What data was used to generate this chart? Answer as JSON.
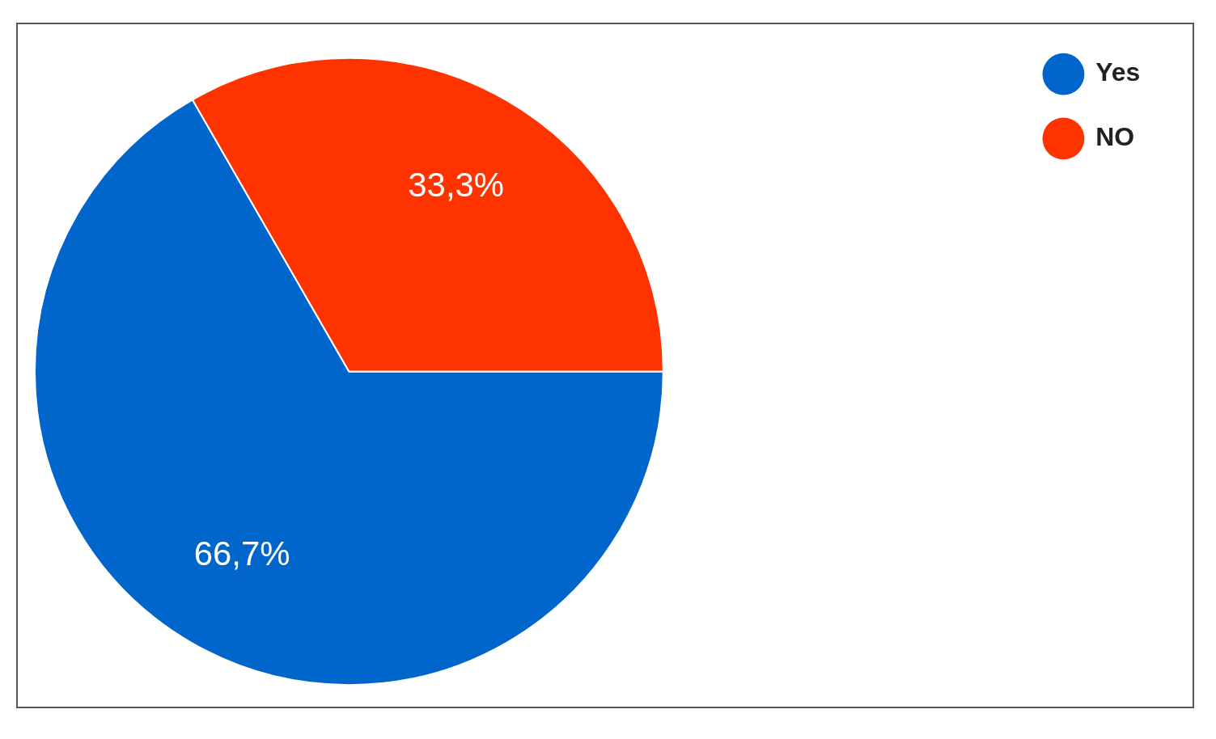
{
  "chart_data": {
    "type": "pie",
    "categories": [
      "Yes",
      "NO"
    ],
    "values": [
      66.7,
      33.3
    ],
    "value_labels": [
      "66,7%",
      "33,3%"
    ],
    "colors": [
      "#0066cc",
      "#ff3300"
    ],
    "legend": "top right"
  }
}
